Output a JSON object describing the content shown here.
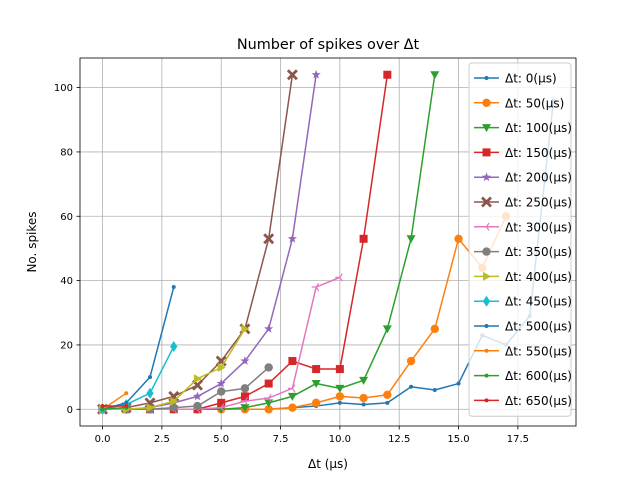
{
  "chart_data": {
    "type": "line",
    "title": "Number of spikes over Δt",
    "xlabel": "Δt (μs)",
    "ylabel": "No. spikes",
    "xlim": [
      -0.95,
      19.95
    ],
    "ylim": [
      -5.2,
      109.2
    ],
    "xticks": [
      0.0,
      2.5,
      5.0,
      7.5,
      10.0,
      12.5,
      15.0,
      17.5
    ],
    "xtick_labels": [
      "0.0",
      "2.5",
      "5.0",
      "7.5",
      "10.0",
      "12.5",
      "15.0",
      "17.5"
    ],
    "yticks": [
      0,
      20,
      40,
      60,
      80,
      100
    ],
    "ytick_labels": [
      "0",
      "20",
      "40",
      "60",
      "80",
      "100"
    ],
    "grid": true,
    "legend_position": "top-right",
    "series": [
      {
        "name": "Δt: 0(μs)",
        "color": "#1f77b4",
        "marker": "point",
        "x": [
          0,
          1,
          2,
          3,
          4,
          5,
          6,
          7,
          8,
          9,
          10,
          11,
          12,
          13,
          14,
          15,
          16,
          17,
          18,
          19
        ],
        "y": [
          0,
          0,
          0,
          0,
          0,
          0,
          0,
          0,
          0.5,
          1,
          2,
          1.5,
          2,
          7,
          6,
          8,
          23,
          20,
          29,
          96
        ]
      },
      {
        "name": "Δt: 50(μs)",
        "color": "#ff7f0e",
        "marker": "circle",
        "x": [
          0,
          1,
          2,
          3,
          4,
          5,
          6,
          7,
          8,
          9,
          10,
          11,
          12,
          13,
          14,
          15,
          16,
          17
        ],
        "y": [
          0,
          0,
          0,
          0,
          0,
          0,
          0,
          0,
          0.5,
          2,
          4,
          3.5,
          4.5,
          15,
          25,
          53,
          44,
          60
        ]
      },
      {
        "name": "Δt: 100(μs)",
        "color": "#2ca02c",
        "marker": "triangle_down",
        "x": [
          0,
          1,
          2,
          3,
          4,
          5,
          6,
          7,
          8,
          9,
          10,
          11,
          12,
          13,
          14
        ],
        "y": [
          0,
          0,
          0,
          0,
          0,
          0,
          0.5,
          2,
          4,
          8,
          6.5,
          9,
          25,
          53,
          104
        ]
      },
      {
        "name": "Δt: 150(μs)",
        "color": "#d62728",
        "marker": "square",
        "x": [
          0,
          1,
          2,
          3,
          4,
          5,
          6,
          7,
          8,
          9,
          10,
          11,
          12
        ],
        "y": [
          0,
          0,
          0,
          0,
          0,
          2,
          4,
          8,
          15,
          12.5,
          12.5,
          53,
          104
        ]
      },
      {
        "name": "Δt: 200(μs)",
        "color": "#9467bd",
        "marker": "star",
        "x": [
          0,
          1,
          2,
          3,
          4,
          5,
          6,
          7,
          8,
          9
        ],
        "y": [
          0,
          0,
          0.5,
          2,
          4,
          8,
          15,
          25,
          53,
          104
        ]
      },
      {
        "name": "Δt: 250(μs)",
        "color": "#8c564b",
        "marker": "x",
        "x": [
          0,
          1,
          2,
          3,
          4,
          5,
          6,
          7,
          8
        ],
        "y": [
          0,
          0.5,
          2,
          4,
          7.5,
          15,
          25,
          53,
          104
        ]
      },
      {
        "name": "Δt: 300(μs)",
        "color": "#e377c2",
        "marker": "tri_left",
        "x": [
          0,
          1,
          2,
          3,
          4,
          5,
          6,
          7,
          8,
          9,
          10
        ],
        "y": [
          0,
          0,
          0,
          0,
          0,
          0.5,
          2.5,
          3.5,
          6.5,
          38,
          41
        ]
      },
      {
        "name": "Δt: 350(μs)",
        "color": "#7f7f7f",
        "marker": "circle",
        "x": [
          0,
          1,
          2,
          3,
          4,
          5,
          6,
          7
        ],
        "y": [
          0,
          0,
          0,
          0.5,
          1,
          5.5,
          6.5,
          13
        ]
      },
      {
        "name": "Δt: 400(μs)",
        "color": "#bcbd22",
        "marker": "triangle_right",
        "x": [
          0,
          1,
          2,
          3,
          4,
          5,
          6
        ],
        "y": [
          0,
          0,
          0.5,
          2.5,
          9.5,
          13,
          25
        ]
      },
      {
        "name": "Δt: 450(μs)",
        "color": "#17becf",
        "marker": "diamond",
        "x": [
          0,
          1,
          2,
          3
        ],
        "y": [
          0,
          1.5,
          5,
          19.5
        ]
      },
      {
        "name": "Δt: 500(μs)",
        "color": "#1f77b4",
        "marker": "point",
        "x": [
          0,
          1,
          2,
          3
        ],
        "y": [
          0,
          2,
          10,
          38
        ]
      },
      {
        "name": "Δt: 550(μs)",
        "color": "#ff7f0e",
        "marker": "point",
        "x": [
          0,
          1
        ],
        "y": [
          0,
          5
        ]
      },
      {
        "name": "Δt: 600(μs)",
        "color": "#2ca02c",
        "marker": "point",
        "x": [
          0,
          1
        ],
        "y": [
          0,
          0.5
        ]
      },
      {
        "name": "Δt: 650(μs)",
        "color": "#d62728",
        "marker": "point",
        "x": [
          0,
          1
        ],
        "y": [
          1,
          1
        ]
      }
    ]
  }
}
